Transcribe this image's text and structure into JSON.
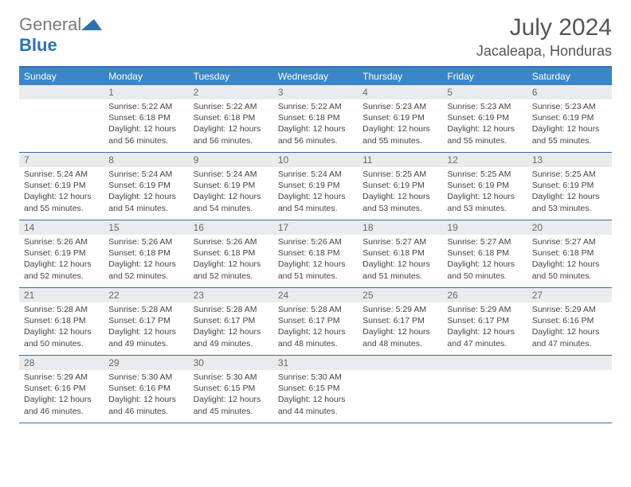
{
  "brand": {
    "gray": "General",
    "blue": "Blue"
  },
  "title": "July 2024",
  "location": "Jacaleapa, Honduras",
  "colors": {
    "header_bg": "#3b86c8",
    "border": "#2f6fb0",
    "daynum_bg": "#e9ecef",
    "text": "#444444",
    "title": "#555555"
  },
  "weekdays": [
    "Sunday",
    "Monday",
    "Tuesday",
    "Wednesday",
    "Thursday",
    "Friday",
    "Saturday"
  ],
  "weeks": [
    [
      {
        "empty": true
      },
      {
        "num": "1",
        "sunrise": "Sunrise: 5:22 AM",
        "sunset": "Sunset: 6:18 PM",
        "daylight": "Daylight: 12 hours and 56 minutes."
      },
      {
        "num": "2",
        "sunrise": "Sunrise: 5:22 AM",
        "sunset": "Sunset: 6:18 PM",
        "daylight": "Daylight: 12 hours and 56 minutes."
      },
      {
        "num": "3",
        "sunrise": "Sunrise: 5:22 AM",
        "sunset": "Sunset: 6:18 PM",
        "daylight": "Daylight: 12 hours and 56 minutes."
      },
      {
        "num": "4",
        "sunrise": "Sunrise: 5:23 AM",
        "sunset": "Sunset: 6:19 PM",
        "daylight": "Daylight: 12 hours and 55 minutes."
      },
      {
        "num": "5",
        "sunrise": "Sunrise: 5:23 AM",
        "sunset": "Sunset: 6:19 PM",
        "daylight": "Daylight: 12 hours and 55 minutes."
      },
      {
        "num": "6",
        "sunrise": "Sunrise: 5:23 AM",
        "sunset": "Sunset: 6:19 PM",
        "daylight": "Daylight: 12 hours and 55 minutes."
      }
    ],
    [
      {
        "num": "7",
        "sunrise": "Sunrise: 5:24 AM",
        "sunset": "Sunset: 6:19 PM",
        "daylight": "Daylight: 12 hours and 55 minutes."
      },
      {
        "num": "8",
        "sunrise": "Sunrise: 5:24 AM",
        "sunset": "Sunset: 6:19 PM",
        "daylight": "Daylight: 12 hours and 54 minutes."
      },
      {
        "num": "9",
        "sunrise": "Sunrise: 5:24 AM",
        "sunset": "Sunset: 6:19 PM",
        "daylight": "Daylight: 12 hours and 54 minutes."
      },
      {
        "num": "10",
        "sunrise": "Sunrise: 5:24 AM",
        "sunset": "Sunset: 6:19 PM",
        "daylight": "Daylight: 12 hours and 54 minutes."
      },
      {
        "num": "11",
        "sunrise": "Sunrise: 5:25 AM",
        "sunset": "Sunset: 6:19 PM",
        "daylight": "Daylight: 12 hours and 53 minutes."
      },
      {
        "num": "12",
        "sunrise": "Sunrise: 5:25 AM",
        "sunset": "Sunset: 6:19 PM",
        "daylight": "Daylight: 12 hours and 53 minutes."
      },
      {
        "num": "13",
        "sunrise": "Sunrise: 5:25 AM",
        "sunset": "Sunset: 6:19 PM",
        "daylight": "Daylight: 12 hours and 53 minutes."
      }
    ],
    [
      {
        "num": "14",
        "sunrise": "Sunrise: 5:26 AM",
        "sunset": "Sunset: 6:19 PM",
        "daylight": "Daylight: 12 hours and 52 minutes."
      },
      {
        "num": "15",
        "sunrise": "Sunrise: 5:26 AM",
        "sunset": "Sunset: 6:18 PM",
        "daylight": "Daylight: 12 hours and 52 minutes."
      },
      {
        "num": "16",
        "sunrise": "Sunrise: 5:26 AM",
        "sunset": "Sunset: 6:18 PM",
        "daylight": "Daylight: 12 hours and 52 minutes."
      },
      {
        "num": "17",
        "sunrise": "Sunrise: 5:26 AM",
        "sunset": "Sunset: 6:18 PM",
        "daylight": "Daylight: 12 hours and 51 minutes."
      },
      {
        "num": "18",
        "sunrise": "Sunrise: 5:27 AM",
        "sunset": "Sunset: 6:18 PM",
        "daylight": "Daylight: 12 hours and 51 minutes."
      },
      {
        "num": "19",
        "sunrise": "Sunrise: 5:27 AM",
        "sunset": "Sunset: 6:18 PM",
        "daylight": "Daylight: 12 hours and 50 minutes."
      },
      {
        "num": "20",
        "sunrise": "Sunrise: 5:27 AM",
        "sunset": "Sunset: 6:18 PM",
        "daylight": "Daylight: 12 hours and 50 minutes."
      }
    ],
    [
      {
        "num": "21",
        "sunrise": "Sunrise: 5:28 AM",
        "sunset": "Sunset: 6:18 PM",
        "daylight": "Daylight: 12 hours and 50 minutes."
      },
      {
        "num": "22",
        "sunrise": "Sunrise: 5:28 AM",
        "sunset": "Sunset: 6:17 PM",
        "daylight": "Daylight: 12 hours and 49 minutes."
      },
      {
        "num": "23",
        "sunrise": "Sunrise: 5:28 AM",
        "sunset": "Sunset: 6:17 PM",
        "daylight": "Daylight: 12 hours and 49 minutes."
      },
      {
        "num": "24",
        "sunrise": "Sunrise: 5:28 AM",
        "sunset": "Sunset: 6:17 PM",
        "daylight": "Daylight: 12 hours and 48 minutes."
      },
      {
        "num": "25",
        "sunrise": "Sunrise: 5:29 AM",
        "sunset": "Sunset: 6:17 PM",
        "daylight": "Daylight: 12 hours and 48 minutes."
      },
      {
        "num": "26",
        "sunrise": "Sunrise: 5:29 AM",
        "sunset": "Sunset: 6:17 PM",
        "daylight": "Daylight: 12 hours and 47 minutes."
      },
      {
        "num": "27",
        "sunrise": "Sunrise: 5:29 AM",
        "sunset": "Sunset: 6:16 PM",
        "daylight": "Daylight: 12 hours and 47 minutes."
      }
    ],
    [
      {
        "num": "28",
        "sunrise": "Sunrise: 5:29 AM",
        "sunset": "Sunset: 6:16 PM",
        "daylight": "Daylight: 12 hours and 46 minutes."
      },
      {
        "num": "29",
        "sunrise": "Sunrise: 5:30 AM",
        "sunset": "Sunset: 6:16 PM",
        "daylight": "Daylight: 12 hours and 46 minutes."
      },
      {
        "num": "30",
        "sunrise": "Sunrise: 5:30 AM",
        "sunset": "Sunset: 6:15 PM",
        "daylight": "Daylight: 12 hours and 45 minutes."
      },
      {
        "num": "31",
        "sunrise": "Sunrise: 5:30 AM",
        "sunset": "Sunset: 6:15 PM",
        "daylight": "Daylight: 12 hours and 44 minutes."
      },
      {
        "empty": true
      },
      {
        "empty": true
      },
      {
        "empty": true
      }
    ]
  ]
}
